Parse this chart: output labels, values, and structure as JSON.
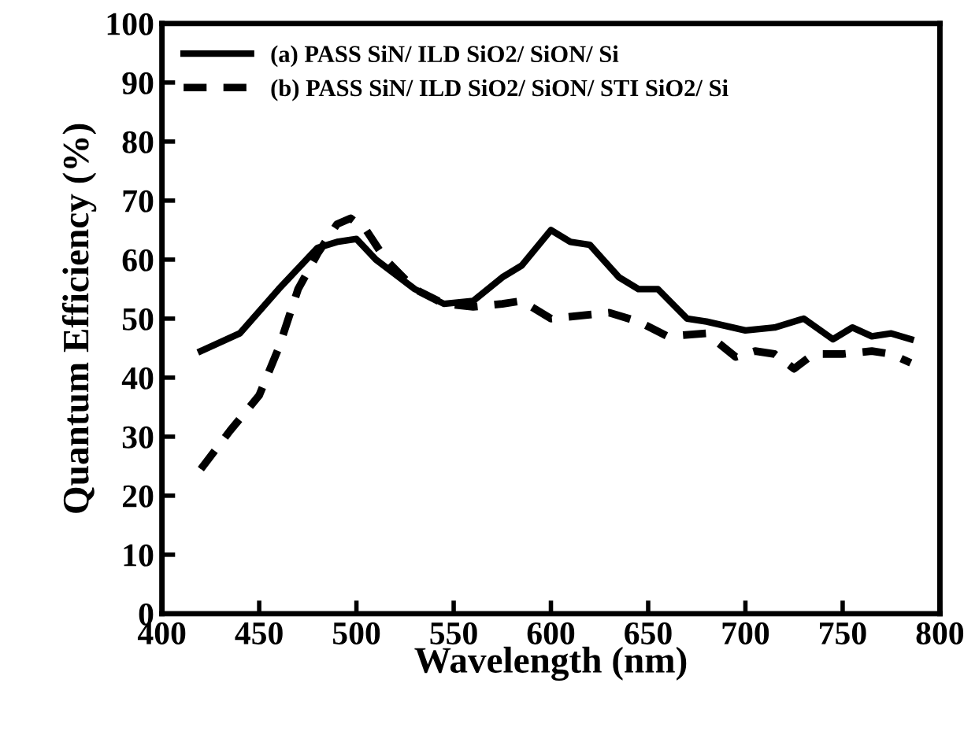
{
  "chart_data": {
    "type": "line",
    "xlabel": "Wavelength (nm)",
    "ylabel": "Quantum Efficiency (%)",
    "xlim": [
      400,
      800
    ],
    "xticks": [
      400,
      450,
      500,
      550,
      600,
      650,
      700,
      750,
      800
    ],
    "ylim": [
      0,
      100
    ],
    "yticks": [
      0,
      10,
      20,
      30,
      40,
      50,
      60,
      70,
      80,
      90,
      100
    ],
    "grid": false,
    "legend": "top left",
    "marker": "none",
    "series": [
      {
        "name": "(a) PASS SiN/ ILD SiO2/ SiON/ Si",
        "color": "#000000",
        "line_style": "solid",
        "x": [
          420,
          440,
          460,
          480,
          490,
          500,
          510,
          530,
          545,
          560,
          575,
          585,
          600,
          610,
          620,
          635,
          645,
          655,
          670,
          680,
          700,
          715,
          730,
          745,
          755,
          765,
          775,
          785
        ],
        "values": [
          44.5,
          47.5,
          55,
          62,
          63,
          63.5,
          60,
          55,
          52.5,
          53,
          57,
          59,
          65,
          63,
          62.5,
          57,
          55,
          55,
          50,
          49.5,
          48,
          48.5,
          50,
          46.5,
          48.5,
          47,
          47.5,
          46.5
        ]
      },
      {
        "name": "(b) PASS SiN/ ILD SiO2/ SiON/ STI SiO2/ Si",
        "color": "#000000",
        "line_style": "dashed",
        "x": [
          420,
          435,
          450,
          460,
          470,
          480,
          490,
          497,
          505,
          515,
          530,
          545,
          560,
          575,
          585,
          600,
          615,
          630,
          645,
          660,
          680,
          695,
          705,
          715,
          725,
          735,
          750,
          765,
          775,
          785
        ],
        "values": [
          24.5,
          31,
          37,
          45,
          55,
          61,
          66,
          67,
          65,
          60,
          55,
          52.5,
          52,
          52.5,
          53,
          50,
          50.5,
          51,
          49.5,
          47,
          47.5,
          43.5,
          44.5,
          44,
          41.5,
          44,
          44,
          44.5,
          44,
          42.5
        ]
      }
    ]
  }
}
